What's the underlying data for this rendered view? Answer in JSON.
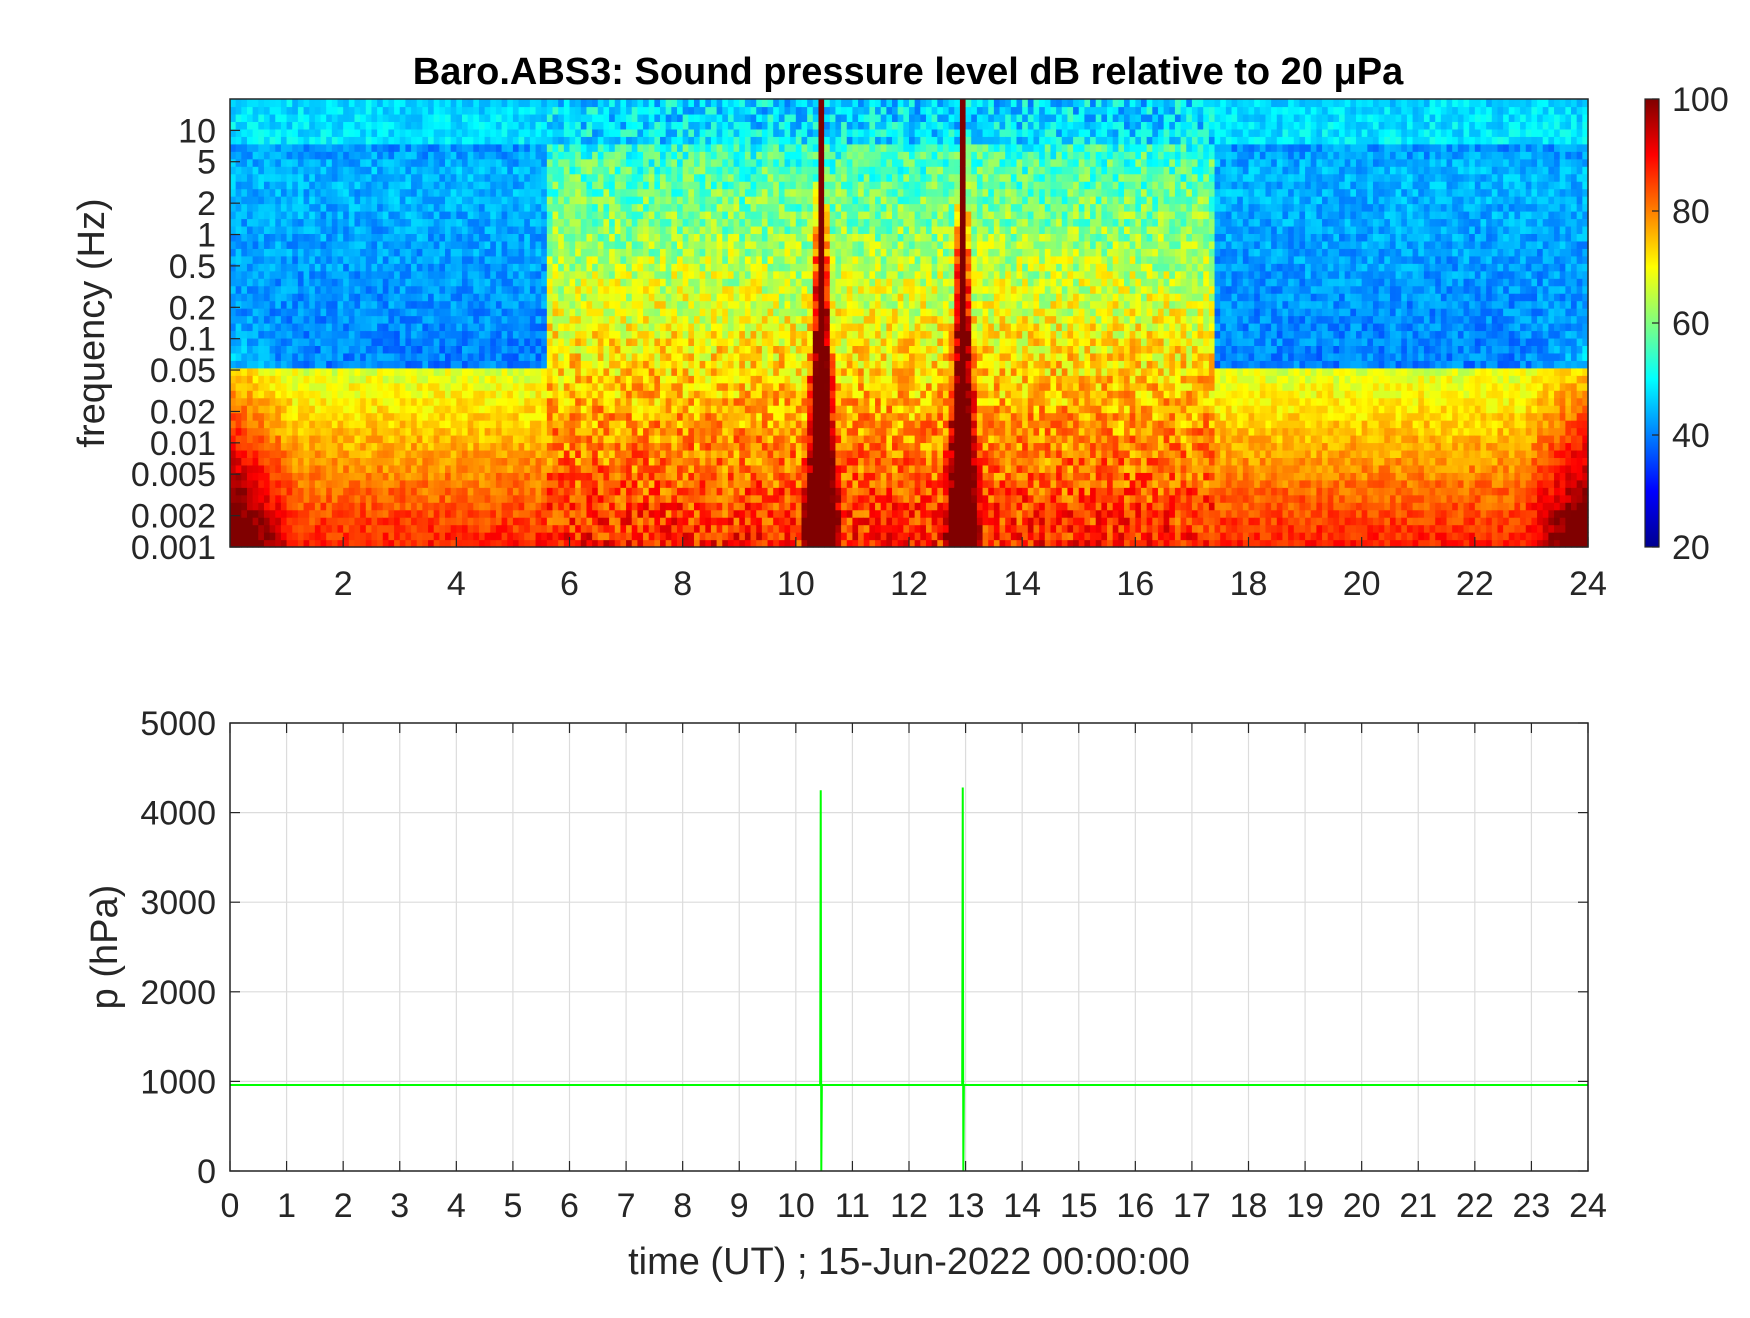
{
  "chart_data": [
    {
      "type": "heatmap",
      "title": "Baro.ABS3: Sound pressure level dB relative to 20 μPa",
      "xlabel": "",
      "ylabel": "frequency (Hz)",
      "y_scale": "log",
      "xlim": [
        0,
        24
      ],
      "ylim": [
        0.001,
        20
      ],
      "x_ticks": [
        "2",
        "4",
        "6",
        "8",
        "10",
        "12",
        "14",
        "16",
        "18",
        "20",
        "22",
        "24"
      ],
      "y_ticks": [
        "0.001",
        "0.002",
        "0.005",
        "0.01",
        "0.02",
        "0.05",
        "0.1",
        "0.2",
        "0.5",
        "1",
        "2",
        "5",
        "10"
      ],
      "colorbar": {
        "colormap": "jet",
        "range": [
          20,
          100
        ],
        "ticks": [
          "20",
          "40",
          "60",
          "80",
          "100"
        ]
      },
      "spikes_hours": [
        10.45,
        12.95
      ],
      "features": {
        "high_band_above_10Hz_dB": 45,
        "quiet_hours": [
          [
            1.5,
            5.6
          ],
          [
            17.4,
            23.3
          ]
        ],
        "active_hours": [
          [
            5.7,
            17.4
          ]
        ],
        "low_frequency_level_dB": 85
      }
    },
    {
      "type": "line",
      "title": "",
      "xlabel": "time (UT) ; 15-Jun-2022 00:00:00",
      "ylabel": "p (hPa)",
      "xlim": [
        0,
        24
      ],
      "ylim": [
        0,
        5000
      ],
      "grid": true,
      "x_ticks": [
        "0",
        "1",
        "2",
        "3",
        "4",
        "5",
        "6",
        "7",
        "8",
        "9",
        "10",
        "11",
        "12",
        "13",
        "14",
        "15",
        "16",
        "17",
        "18",
        "19",
        "20",
        "21",
        "22",
        "23",
        "24"
      ],
      "y_ticks": [
        "0",
        "1000",
        "2000",
        "3000",
        "4000",
        "5000"
      ],
      "color": "#00ff00",
      "series": [
        {
          "x": [
            0,
            10.43,
            10.44,
            10.45,
            10.46,
            12.94,
            12.95,
            12.96,
            12.97,
            24
          ],
          "y": [
            960,
            960,
            4250,
            0,
            960,
            960,
            4280,
            0,
            960,
            960
          ]
        }
      ]
    }
  ]
}
